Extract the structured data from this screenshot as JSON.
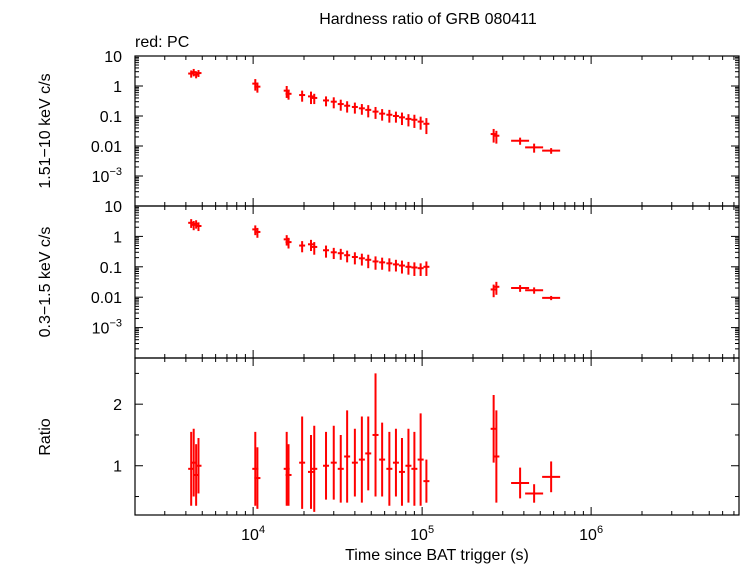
{
  "chart_data": {
    "type": "scatter",
    "title": "Hardness ratio of GRB 080411",
    "legend": "red: PC",
    "xlabel": "Time since BAT trigger (s)",
    "xscale": "log",
    "xlim": [
      2000,
      7500000
    ],
    "xticks": [
      {
        "value": 10000,
        "base": "10",
        "exp": "4"
      },
      {
        "value": 100000,
        "base": "10",
        "exp": "5"
      },
      {
        "value": 1000000,
        "base": "10",
        "exp": "6"
      }
    ],
    "series_color": "#ff0000",
    "panels": [
      {
        "name": "hard",
        "ylabel": "1.51−10 keV c/s",
        "yscale": "log",
        "ylim": [
          0.0001,
          10
        ],
        "yticks": [
          {
            "value": 10,
            "label": "10"
          },
          {
            "value": 1,
            "label": "1"
          },
          {
            "value": 0.1,
            "label": "0.1"
          },
          {
            "value": 0.01,
            "label": "0.01"
          },
          {
            "value": 0.001,
            "base": "10",
            "exp": "−3"
          }
        ],
        "points": [
          [
            4300,
            2.6,
            0.7
          ],
          [
            4450,
            2.9,
            0.8
          ],
          [
            4600,
            2.4,
            0.6
          ],
          [
            4750,
            2.7,
            0.7
          ],
          [
            10300,
            1.2,
            0.5
          ],
          [
            10600,
            0.95,
            0.35
          ],
          [
            15800,
            0.7,
            0.3
          ],
          [
            16200,
            0.55,
            0.2
          ],
          [
            19500,
            0.5,
            0.2
          ],
          [
            22000,
            0.45,
            0.2
          ],
          [
            23000,
            0.4,
            0.15
          ],
          [
            27000,
            0.33,
            0.12
          ],
          [
            30000,
            0.3,
            0.12
          ],
          [
            33000,
            0.25,
            0.1
          ],
          [
            36000,
            0.22,
            0.09
          ],
          [
            40000,
            0.2,
            0.08
          ],
          [
            44000,
            0.18,
            0.07
          ],
          [
            48000,
            0.16,
            0.07
          ],
          [
            53000,
            0.14,
            0.06
          ],
          [
            58000,
            0.12,
            0.05
          ],
          [
            64000,
            0.11,
            0.05
          ],
          [
            70000,
            0.1,
            0.04
          ],
          [
            76000,
            0.09,
            0.04
          ],
          [
            83000,
            0.08,
            0.035
          ],
          [
            90000,
            0.075,
            0.035
          ],
          [
            98000,
            0.065,
            0.03
          ],
          [
            106000,
            0.055,
            0.03
          ],
          [
            265000,
            0.025,
            0.012
          ],
          [
            275000,
            0.022,
            0.01
          ],
          [
            380000,
            0.015,
            0.004
          ],
          [
            460000,
            0.009,
            0.003
          ],
          [
            580000,
            0.007,
            0.0015
          ]
        ]
      },
      {
        "name": "soft",
        "ylabel": "0.3−1.5 keV c/s",
        "yscale": "log",
        "ylim": [
          0.0001,
          10
        ],
        "yticks": [
          {
            "value": 10,
            "label": "10"
          },
          {
            "value": 1,
            "label": "1"
          },
          {
            "value": 0.1,
            "label": "0.1"
          },
          {
            "value": 0.01,
            "label": "0.01"
          },
          {
            "value": 0.001,
            "base": "10",
            "exp": "−3"
          }
        ],
        "points": [
          [
            4300,
            2.8,
            0.9
          ],
          [
            4450,
            2.4,
            0.8
          ],
          [
            4600,
            2.6,
            0.8
          ],
          [
            4750,
            2.2,
            0.7
          ],
          [
            10300,
            1.7,
            0.6
          ],
          [
            10600,
            1.4,
            0.5
          ],
          [
            15800,
            0.8,
            0.3
          ],
          [
            16200,
            0.65,
            0.25
          ],
          [
            19500,
            0.5,
            0.2
          ],
          [
            22000,
            0.55,
            0.22
          ],
          [
            23000,
            0.45,
            0.2
          ],
          [
            27000,
            0.35,
            0.15
          ],
          [
            30000,
            0.3,
            0.12
          ],
          [
            33000,
            0.28,
            0.11
          ],
          [
            36000,
            0.24,
            0.1
          ],
          [
            40000,
            0.21,
            0.09
          ],
          [
            44000,
            0.19,
            0.08
          ],
          [
            48000,
            0.17,
            0.08
          ],
          [
            53000,
            0.15,
            0.07
          ],
          [
            58000,
            0.14,
            0.06
          ],
          [
            64000,
            0.13,
            0.06
          ],
          [
            70000,
            0.12,
            0.05
          ],
          [
            76000,
            0.11,
            0.05
          ],
          [
            83000,
            0.1,
            0.045
          ],
          [
            90000,
            0.095,
            0.045
          ],
          [
            98000,
            0.09,
            0.04
          ],
          [
            106000,
            0.1,
            0.05
          ],
          [
            265000,
            0.018,
            0.008
          ],
          [
            275000,
            0.022,
            0.01
          ],
          [
            380000,
            0.02,
            0.005
          ],
          [
            460000,
            0.017,
            0.004
          ],
          [
            580000,
            0.0095,
            0.0015
          ]
        ]
      },
      {
        "name": "ratio",
        "ylabel": "Ratio",
        "yscale": "linear",
        "ylim": [
          0.2,
          2.75
        ],
        "yticks": [
          {
            "value": 1,
            "label": "1"
          },
          {
            "value": 2,
            "label": "2"
          }
        ],
        "points": [
          [
            4300,
            0.95,
            0.6
          ],
          [
            4450,
            1.05,
            0.55
          ],
          [
            4600,
            0.85,
            0.5
          ],
          [
            4750,
            1.0,
            0.45
          ],
          [
            10300,
            0.95,
            0.6
          ],
          [
            10600,
            0.8,
            0.5
          ],
          [
            15800,
            0.95,
            0.6
          ],
          [
            16200,
            0.85,
            0.5
          ],
          [
            19500,
            1.05,
            0.75
          ],
          [
            22000,
            0.9,
            0.6
          ],
          [
            23000,
            0.95,
            0.7
          ],
          [
            27000,
            1.0,
            0.55
          ],
          [
            30000,
            1.05,
            0.6
          ],
          [
            33000,
            0.95,
            0.55
          ],
          [
            36000,
            1.15,
            0.75
          ],
          [
            40000,
            1.05,
            0.55
          ],
          [
            44000,
            1.1,
            0.7
          ],
          [
            48000,
            1.2,
            0.6
          ],
          [
            53000,
            1.5,
            1.0
          ],
          [
            58000,
            1.1,
            0.6
          ],
          [
            64000,
            0.95,
            0.6
          ],
          [
            70000,
            1.05,
            0.55
          ],
          [
            76000,
            0.9,
            0.55
          ],
          [
            83000,
            1.0,
            0.6
          ],
          [
            90000,
            0.95,
            0.6
          ],
          [
            98000,
            1.1,
            0.75
          ],
          [
            106000,
            0.75,
            0.35
          ],
          [
            265000,
            1.6,
            0.55
          ],
          [
            275000,
            1.15,
            0.75
          ],
          [
            380000,
            0.72,
            0.25
          ],
          [
            460000,
            0.55,
            0.15
          ],
          [
            580000,
            0.82,
            0.25
          ]
        ]
      }
    ]
  }
}
